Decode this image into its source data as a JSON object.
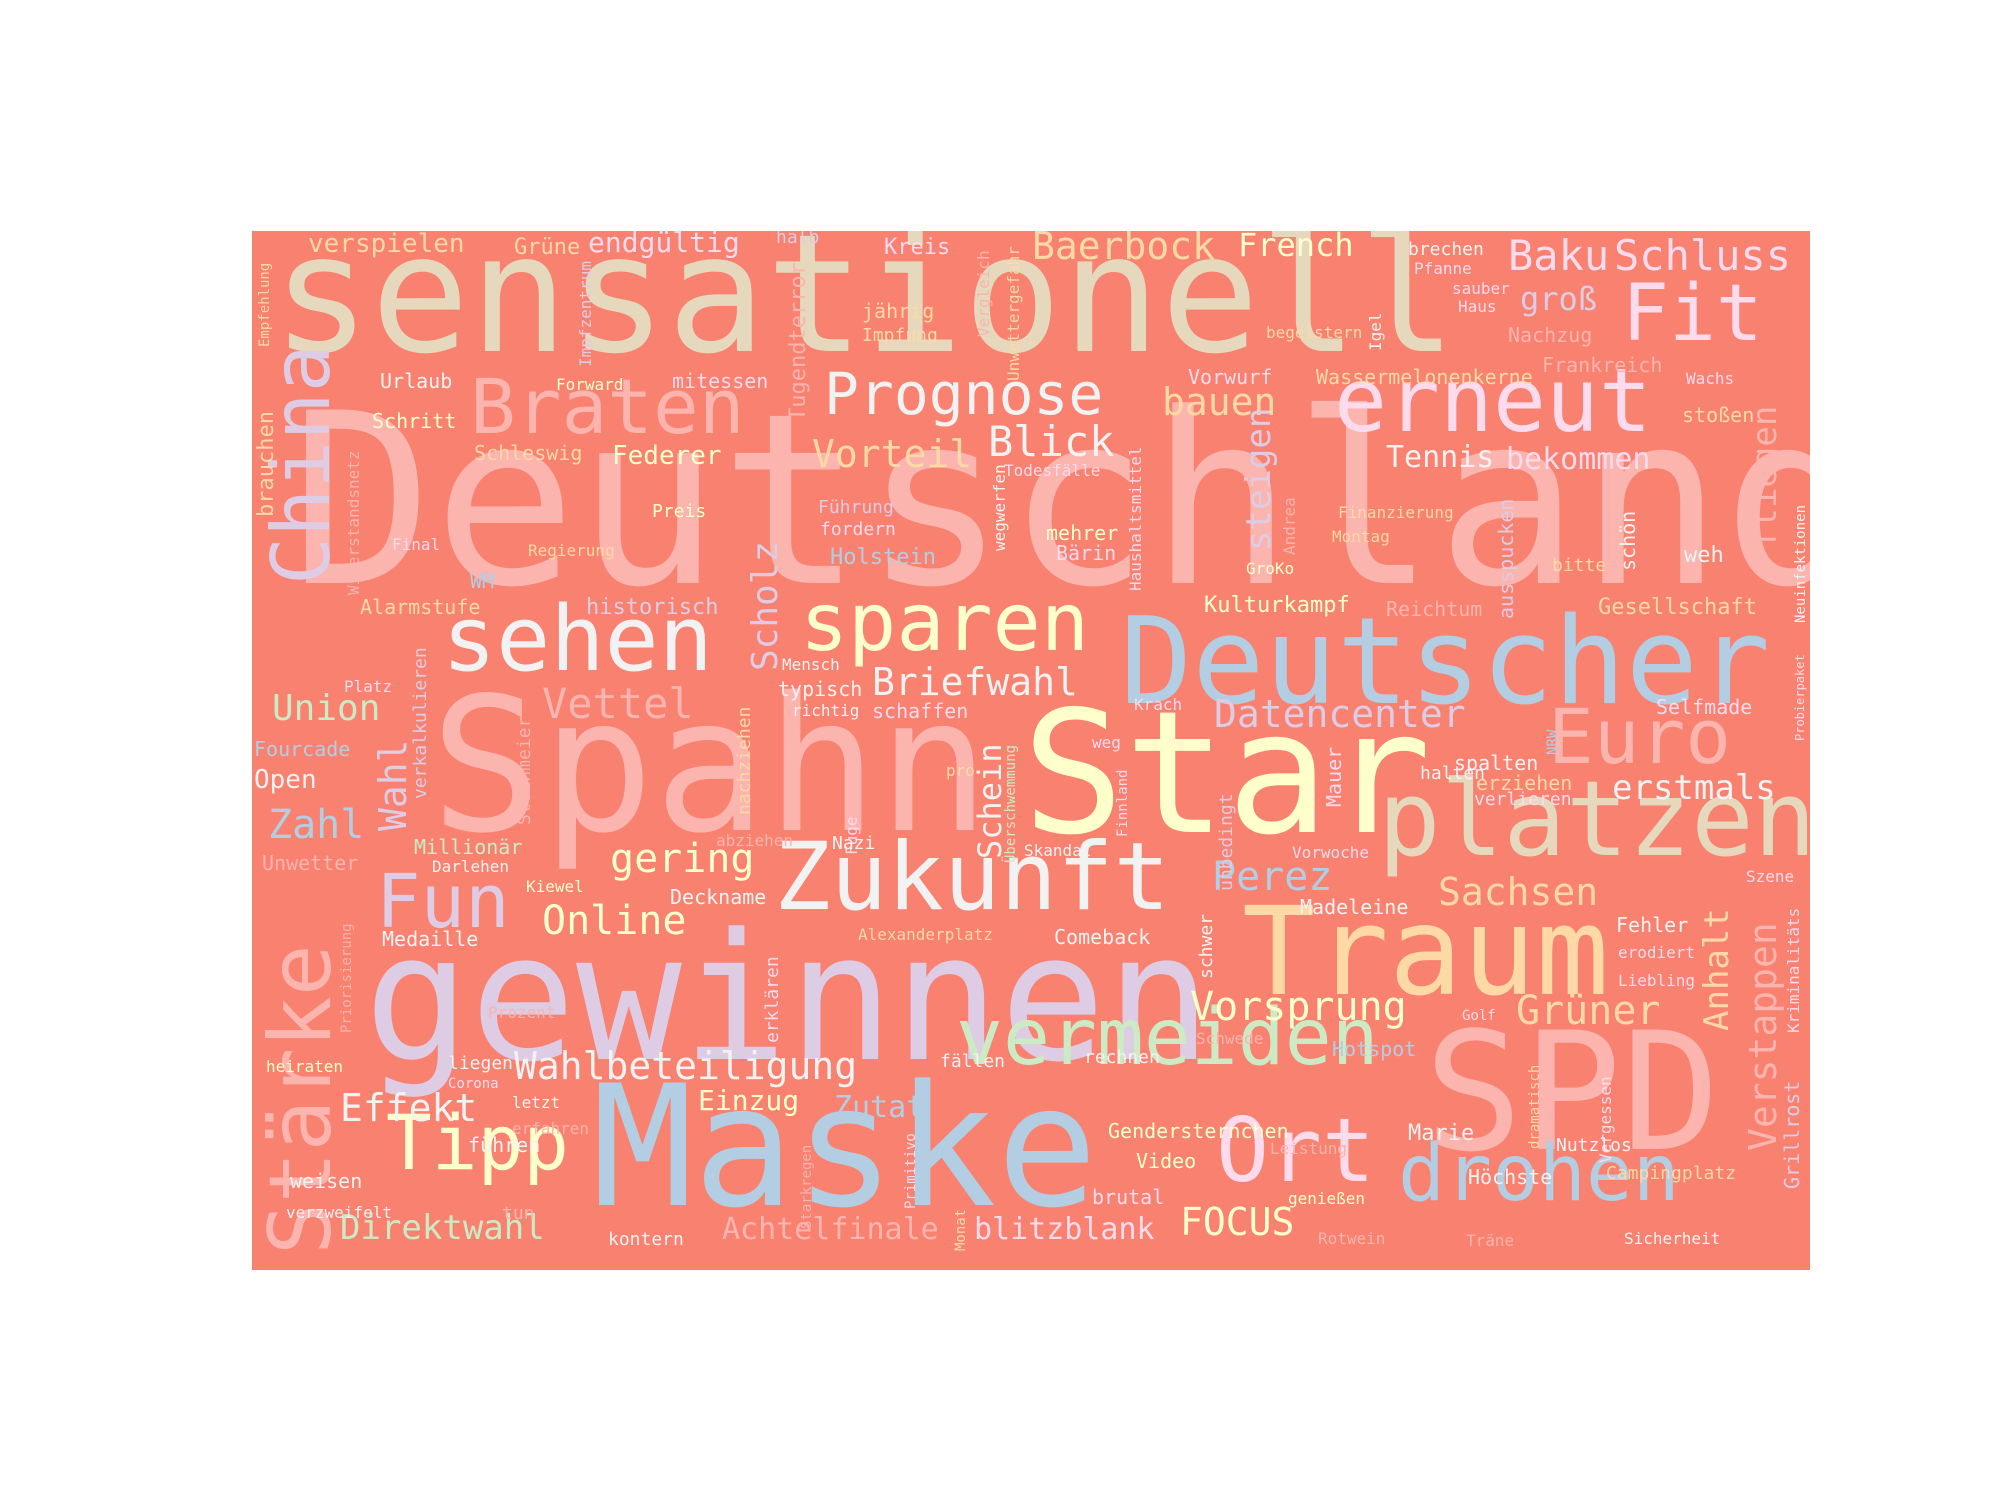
{
  "background_color": "#f88170",
  "words": [
    {
      "text": "Deutschland",
      "color": "#fbb4ae"
    },
    {
      "text": "sensationell",
      "color": "#e5d8bd"
    },
    {
      "text": "Spahn",
      "color": "#fbb4ae"
    },
    {
      "text": "Star",
      "color": "#ffffcc"
    },
    {
      "text": "gewinnen",
      "color": "#decbe4"
    },
    {
      "text": "Maske",
      "color": "#b3cde3"
    },
    {
      "text": "SPD",
      "color": "#fbb4ae"
    },
    {
      "text": "Deutscher",
      "color": "#b3cde3"
    },
    {
      "text": "Traum",
      "color": "#fed9a6"
    },
    {
      "text": "platzen",
      "color": "#e5d8bd"
    },
    {
      "text": "Zukunft",
      "color": "#f2f2f2"
    },
    {
      "text": "erneut",
      "color": "#fddaec"
    },
    {
      "text": "Braten",
      "color": "#fbb4ae"
    },
    {
      "text": "sehen",
      "color": "#f2f2f2"
    },
    {
      "text": "sparen",
      "color": "#ffffcc"
    },
    {
      "text": "China",
      "color": "#decbe4"
    },
    {
      "text": "Stärke",
      "color": "#fbb4ae"
    },
    {
      "text": "vermeiden",
      "color": "#ccebc5"
    },
    {
      "text": "drohen",
      "color": "#b3cde3"
    },
    {
      "text": "Ort",
      "color": "#fddaec"
    },
    {
      "text": "Tipp",
      "color": "#ffffcc"
    },
    {
      "text": "Fun",
      "color": "#decbe4"
    },
    {
      "text": "Euro",
      "color": "#fbb4ae"
    },
    {
      "text": "Fit",
      "color": "#fddaec"
    },
    {
      "text": "Prognose",
      "color": "#f2f2f2"
    },
    {
      "text": "Baerbock",
      "color": "#fed9a6"
    },
    {
      "text": "Schluss",
      "color": "#fddaec"
    },
    {
      "text": "Baku",
      "color": "#fddaec"
    },
    {
      "text": "French",
      "color": "#ffffcc"
    },
    {
      "text": "Vorteil",
      "color": "#fed9a6"
    },
    {
      "text": "Blick",
      "color": "#f2f2f2"
    },
    {
      "text": "bauen",
      "color": "#fed9a6"
    },
    {
      "text": "Briefwahl",
      "color": "#f2f2f2"
    },
    {
      "text": "Datencenter",
      "color": "#decbe4"
    },
    {
      "text": "Scholz",
      "color": "#decbe4"
    },
    {
      "text": "Vettel",
      "color": "#fbb4ae"
    },
    {
      "text": "Union",
      "color": "#ccebc5"
    },
    {
      "text": "Zahl",
      "color": "#b3cde3"
    },
    {
      "text": "Wahl",
      "color": "#decbe4"
    },
    {
      "text": "gering",
      "color": "#ffffcc"
    },
    {
      "text": "Online",
      "color": "#ffffcc"
    },
    {
      "text": "Perez",
      "color": "#b3cde3"
    },
    {
      "text": "Sachsen",
      "color": "#fed9a6"
    },
    {
      "text": "Vorsprung",
      "color": "#ffffcc"
    },
    {
      "text": "Grüner",
      "color": "#fed9a6"
    },
    {
      "text": "Anhalt",
      "color": "#fed9a6"
    },
    {
      "text": "Verstappen",
      "color": "#fbb4ae"
    },
    {
      "text": "Wahlbeteiligung",
      "color": "#f2f2f2"
    },
    {
      "text": "Effekt",
      "color": "#f2f2f2"
    },
    {
      "text": "Einzug",
      "color": "#ffffcc"
    },
    {
      "text": "Zutat",
      "color": "#b3cde3"
    },
    {
      "text": "Direktwahl",
      "color": "#ccebc5"
    },
    {
      "text": "FOCUS",
      "color": "#ffffcc"
    },
    {
      "text": "blitzblank",
      "color": "#fddaec"
    },
    {
      "text": "Achtelfinale",
      "color": "#fbb4ae"
    },
    {
      "text": "Schein",
      "color": "#f2f2f2"
    },
    {
      "text": "erstmals",
      "color": "#f2f2f2"
    },
    {
      "text": "Tennis",
      "color": "#f2f2f2"
    },
    {
      "text": "bekommen",
      "color": "#fddaec"
    },
    {
      "text": "fliegen",
      "color": "#fbb4ae"
    },
    {
      "text": "steigen",
      "color": "#decbe4"
    },
    {
      "text": "groß",
      "color": "#decbe4"
    },
    {
      "text": "verspielen",
      "color": "#fed9a6"
    },
    {
      "text": "endgültig",
      "color": "#fddaec"
    },
    {
      "text": "Grüne",
      "color": "#fed9a6"
    },
    {
      "text": "Kreis",
      "color": "#fddaec"
    },
    {
      "text": "halb",
      "color": "#decbe4"
    },
    {
      "text": "brechen",
      "color": "#f2f2f2"
    },
    {
      "text": "Pfanne",
      "color": "#fddaec"
    },
    {
      "text": "sauber",
      "color": "#fddaec"
    },
    {
      "text": "Haus",
      "color": "#fddaec"
    },
    {
      "text": "jährig",
      "color": "#fed9a6"
    },
    {
      "text": "Impfung",
      "color": "#fed9a6"
    },
    {
      "text": "begeistern",
      "color": "#fed9a6"
    },
    {
      "text": "Igel",
      "color": "#f2f2f2"
    },
    {
      "text": "Nachzug",
      "color": "#fbb4ae"
    },
    {
      "text": "Frankreich",
      "color": "#fbb4ae"
    },
    {
      "text": "Wachs",
      "color": "#fddaec"
    },
    {
      "text": "Wassermelonenkerne",
      "color": "#fed9a6"
    },
    {
      "text": "Vorwurf",
      "color": "#fddaec"
    },
    {
      "text": "stoßen",
      "color": "#fed9a6"
    },
    {
      "text": "Urlaub",
      "color": "#f2f2f2"
    },
    {
      "text": "Forward",
      "color": "#ffffcc"
    },
    {
      "text": "mitessen",
      "color": "#fddaec"
    },
    {
      "text": "Schritt",
      "color": "#ffffcc"
    },
    {
      "text": "Schleswig",
      "color": "#fed9a6"
    },
    {
      "text": "Federer",
      "color": "#ffffcc"
    },
    {
      "text": "brauchen",
      "color": "#fed9a6"
    },
    {
      "text": "Empfehlung",
      "color": "#fed9a6"
    },
    {
      "text": "Impfzentrum",
      "color": "#decbe4"
    },
    {
      "text": "Tugendterror",
      "color": "#fbb4ae"
    },
    {
      "text": "Vergleich",
      "color": "#fbb4ae"
    },
    {
      "text": "Unwettergefahr",
      "color": "#fed9a6"
    },
    {
      "text": "Widerstandsnetz",
      "color": "#fbb4ae"
    },
    {
      "text": "Final",
      "color": "#fddaec"
    },
    {
      "text": "Regierung",
      "color": "#fed9a6"
    },
    {
      "text": "Preis",
      "color": "#ffffcc"
    },
    {
      "text": "Führung",
      "color": "#decbe4"
    },
    {
      "text": "fordern",
      "color": "#fddaec"
    },
    {
      "text": "Holstein",
      "color": "#b3cde3"
    },
    {
      "text": "Todesfälle",
      "color": "#fddaec"
    },
    {
      "text": "wegwerfen",
      "color": "#f2f2f2"
    },
    {
      "text": "mehrer",
      "color": "#ffffcc"
    },
    {
      "text": "Bärin",
      "color": "#fddaec"
    },
    {
      "text": "Haushaltsmittel",
      "color": "#fddaec"
    },
    {
      "text": "Andrea",
      "color": "#fbb4ae"
    },
    {
      "text": "Finanzierung",
      "color": "#fed9a6"
    },
    {
      "text": "Montag",
      "color": "#fed9a6"
    },
    {
      "text": "GroKo",
      "color": "#ffffcc"
    },
    {
      "text": "ausspucken",
      "color": "#decbe4"
    },
    {
      "text": "bitte",
      "color": "#fed9a6"
    },
    {
      "text": "schön",
      "color": "#f2f2f2"
    },
    {
      "text": "weh",
      "color": "#f2f2f2"
    },
    {
      "text": "Neuinfektionen",
      "color": "#f2f2f2"
    },
    {
      "text": "WM",
      "color": "#b3cde3"
    },
    {
      "text": "Alarmstufe",
      "color": "#fed9a6"
    },
    {
      "text": "historisch",
      "color": "#decbe4"
    },
    {
      "text": "Kulturkampf",
      "color": "#ffffcc"
    },
    {
      "text": "Reichtum",
      "color": "#fbb4ae"
    },
    {
      "text": "Gesellschaft",
      "color": "#fed9a6"
    },
    {
      "text": "verkalkulieren",
      "color": "#decbe4"
    },
    {
      "text": "Platz",
      "color": "#fddaec"
    },
    {
      "text": "Mensch",
      "color": "#f2f2f2"
    },
    {
      "text": "typisch",
      "color": "#f2f2f2"
    },
    {
      "text": "richtig",
      "color": "#f2f2f2"
    },
    {
      "text": "schaffen",
      "color": "#fddaec"
    },
    {
      "text": "Krach",
      "color": "#fddaec"
    },
    {
      "text": "Selfmade",
      "color": "#fddaec"
    },
    {
      "text": "Probierpaket",
      "color": "#fddaec"
    },
    {
      "text": "NRW",
      "color": "#b3cde3"
    },
    {
      "text": "Fourcade",
      "color": "#b3cde3"
    },
    {
      "text": "Open",
      "color": "#f2f2f2"
    },
    {
      "text": "Steinmeier",
      "color": "#fbb4ae"
    },
    {
      "text": "nachziehen",
      "color": "#fed9a6"
    },
    {
      "text": "pro",
      "color": "#fed9a6"
    },
    {
      "text": "Überschwemmung",
      "color": "#ccebc5"
    },
    {
      "text": "weg",
      "color": "#fddaec"
    },
    {
      "text": "Finnland",
      "color": "#fddaec"
    },
    {
      "text": "unbedingt",
      "color": "#decbe4"
    },
    {
      "text": "Mauer",
      "color": "#fddaec"
    },
    {
      "text": "halten",
      "color": "#f2f2f2"
    },
    {
      "text": "spalten",
      "color": "#f2f2f2"
    },
    {
      "text": "erziehen",
      "color": "#fed9a6"
    },
    {
      "text": "verlieren",
      "color": "#fddaec"
    },
    {
      "text": "Fuge",
      "color": "#fddaec"
    },
    {
      "text": "Nazi",
      "color": "#f2f2f2"
    },
    {
      "text": "abziehen",
      "color": "#fbb4ae"
    },
    {
      "text": "Millionär",
      "color": "#ccebc5"
    },
    {
      "text": "Darlehen",
      "color": "#f2f2f2"
    },
    {
      "text": "Unwetter",
      "color": "#fbb4ae"
    },
    {
      "text": "Skandal",
      "color": "#f2f2f2"
    },
    {
      "text": "Vorwoche",
      "color": "#fddaec"
    },
    {
      "text": "Kiewel",
      "color": "#ffffcc"
    },
    {
      "text": "Deckname",
      "color": "#f2f2f2"
    },
    {
      "text": "Szene",
      "color": "#fddaec"
    },
    {
      "text": "Medaille",
      "color": "#f2f2f2"
    },
    {
      "text": "Priorisierung",
      "color": "#fbb4ae"
    },
    {
      "text": "erklären",
      "color": "#fddaec"
    },
    {
      "text": "Alexanderplatz",
      "color": "#fed9a6"
    },
    {
      "text": "Comeback",
      "color": "#f2f2f2"
    },
    {
      "text": "schwer",
      "color": "#f2f2f2"
    },
    {
      "text": "Madeleine",
      "color": "#f2f2f2"
    },
    {
      "text": "Fehler",
      "color": "#f2f2f2"
    },
    {
      "text": "erodiert",
      "color": "#fddaec"
    },
    {
      "text": "Liebling",
      "color": "#fddaec"
    },
    {
      "text": "Kriminalitäts",
      "color": "#fddaec"
    },
    {
      "text": "Prozent",
      "color": "#fbb4ae"
    },
    {
      "text": "Golf",
      "color": "#fddaec"
    },
    {
      "text": "Schwede",
      "color": "#fbb4ae"
    },
    {
      "text": "Hotspot",
      "color": "#b3cde3"
    },
    {
      "text": "heiraten",
      "color": "#ffffcc"
    },
    {
      "text": "liegen",
      "color": "#f2f2f2"
    },
    {
      "text": "Corona",
      "color": "#fddaec"
    },
    {
      "text": "fällen",
      "color": "#f2f2f2"
    },
    {
      "text": "rechnen",
      "color": "#f2f2f2"
    },
    {
      "text": "letzt",
      "color": "#f2f2f2"
    },
    {
      "text": "erfahren",
      "color": "#fbb4ae"
    },
    {
      "text": "führen",
      "color": "#f2f2f2"
    },
    {
      "text": "Gendersternchen",
      "color": "#ffffcc"
    },
    {
      "text": "Leistung",
      "color": "#fbb4ae"
    },
    {
      "text": "Marie",
      "color": "#f2f2f2"
    },
    {
      "text": "dramatisch",
      "color": "#fed9a6"
    },
    {
      "text": "Vergessen",
      "color": "#fddaec"
    },
    {
      "text": "Grillrost",
      "color": "#decbe4"
    },
    {
      "text": "Nutzlos",
      "color": "#f2f2f2"
    },
    {
      "text": "Campingplatz",
      "color": "#fed9a6"
    },
    {
      "text": "Höchste",
      "color": "#f2f2f2"
    },
    {
      "text": "weisen",
      "color": "#f2f2f2"
    },
    {
      "text": "verzweifelt",
      "color": "#f2f2f2"
    },
    {
      "text": "tun",
      "color": "#fbb4ae"
    },
    {
      "text": "Starkregen",
      "color": "#fbb4ae"
    },
    {
      "text": "Primitivo",
      "color": "#fddaec"
    },
    {
      "text": "Monat",
      "color": "#fed9a6"
    },
    {
      "text": "Video",
      "color": "#ffffcc"
    },
    {
      "text": "brutal",
      "color": "#fddaec"
    },
    {
      "text": "genießen",
      "color": "#ffffcc"
    },
    {
      "text": "Rotwein",
      "color": "#fbb4ae"
    },
    {
      "text": "Träne",
      "color": "#fbb4ae"
    },
    {
      "text": "Sicherheit",
      "color": "#f2f2f2"
    },
    {
      "text": "kontern",
      "color": "#f2f2f2"
    }
  ]
}
